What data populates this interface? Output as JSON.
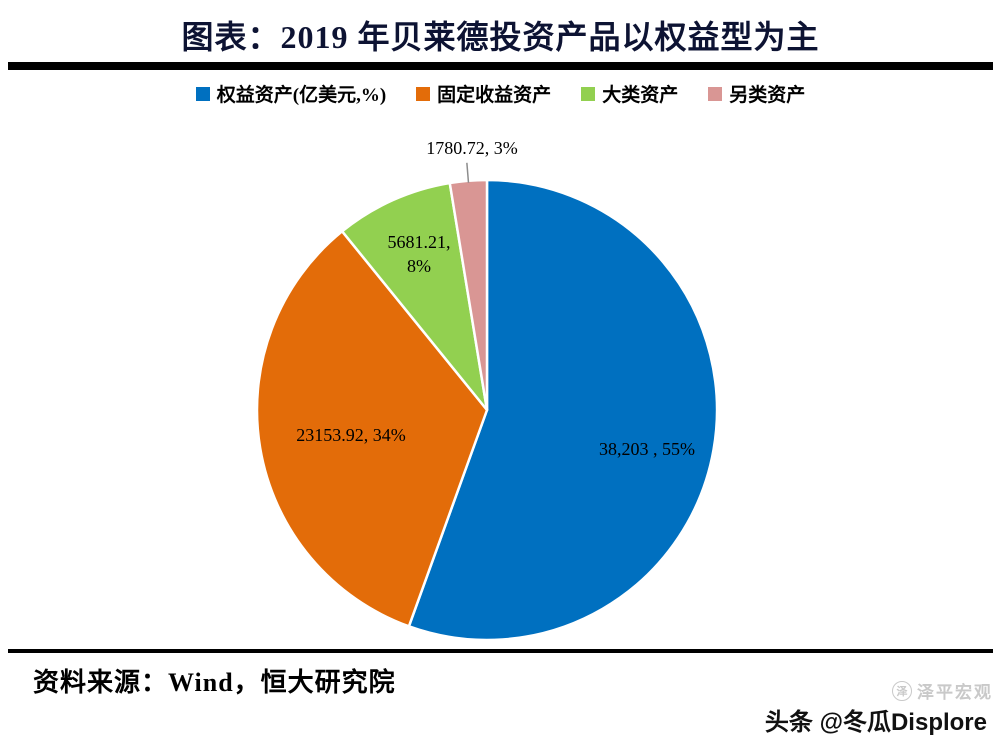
{
  "title": "图表：2019 年贝莱德投资产品以权益型为主",
  "legend": [
    {
      "label": "权益资产(亿美元,%)",
      "color": "#0070C0"
    },
    {
      "label": "固定收益资产",
      "color": "#E36C09"
    },
    {
      "label": "大类资产",
      "color": "#92D050"
    },
    {
      "label": "另类资产",
      "color": "#D99694"
    }
  ],
  "chart_data": {
    "type": "pie",
    "title": "图表：2019 年贝莱德投资产品以权益型为主",
    "unit": "亿美元",
    "start_angle_deg": 0,
    "direction": "clockwise",
    "legend_position": "top",
    "series": [
      {
        "name": "权益资产",
        "value": 38203,
        "percent": 55,
        "label": "38,203 , 55%",
        "color": "#0070C0"
      },
      {
        "name": "固定收益资产",
        "value": 23153.92,
        "percent": 34,
        "label": "23153.92, 34%",
        "color": "#E36C09"
      },
      {
        "name": "大类资产",
        "value": 5681.21,
        "percent": 8,
        "label": "5681.21, 8%",
        "color": "#92D050"
      },
      {
        "name": "另类资产",
        "value": 1780.72,
        "percent": 3,
        "label": "1780.72, 3%",
        "color": "#D99694"
      }
    ]
  },
  "source": "资料来源：Wind，恒大研究院",
  "footer": {
    "watermark": "泽平宏观",
    "watermark_logo": "泽",
    "badge": "头条 @冬瓜Displore"
  }
}
